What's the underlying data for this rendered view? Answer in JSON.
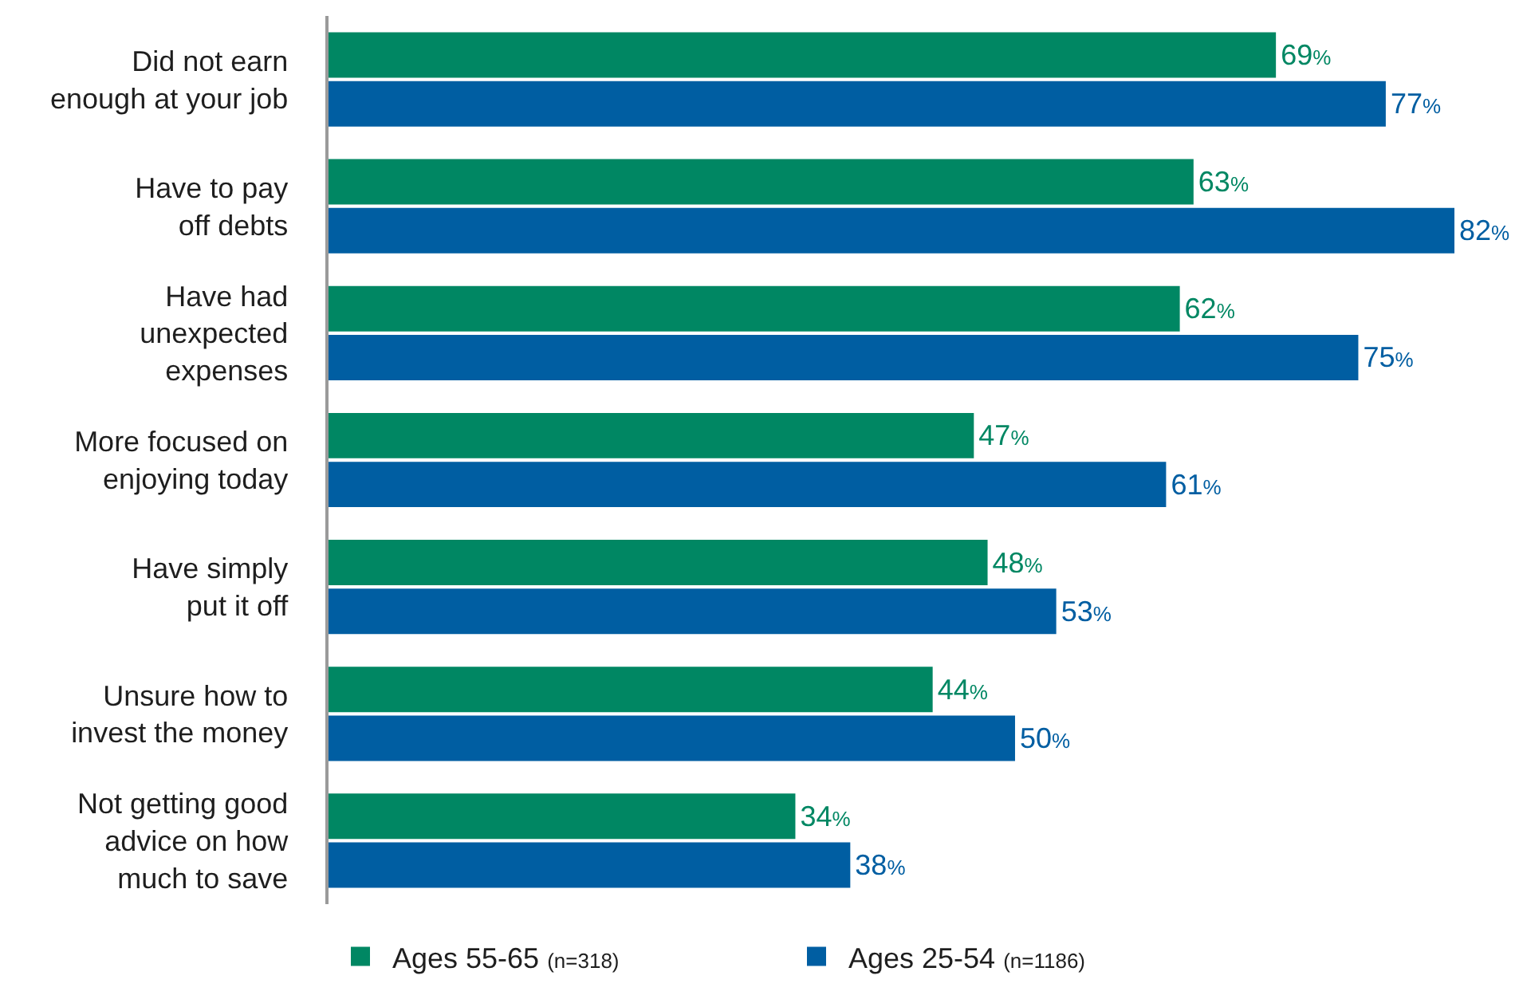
{
  "chart_data": {
    "type": "bar",
    "orientation": "horizontal",
    "categories": [
      "Did not earn\nenough at your job",
      "Have to pay\noff debts",
      "Have had\nunexpected\nexpenses",
      "More focused on\nenjoying today",
      "Have simply\nput it off",
      "Unsure how to\ninvest the money",
      "Not getting good\nadvice on how\nmuch to save"
    ],
    "series": [
      {
        "name": "Ages 55-65 (n=318)",
        "color": "#008763",
        "values": [
          69,
          63,
          62,
          47,
          48,
          44,
          34
        ],
        "value_labels": [
          "69%",
          "63%",
          "62%",
          "47%",
          "48%",
          "44%",
          "34%"
        ]
      },
      {
        "name": "Ages 25-54 (n=1186)",
        "color": "#005ea2",
        "values": [
          77,
          82,
          75,
          61,
          53,
          50,
          38
        ],
        "value_labels": [
          "77%",
          "82%",
          "75%",
          "61%",
          "53%",
          "50%",
          "38%"
        ]
      }
    ],
    "tick_labels": "y",
    "legend": "bottom"
  }
}
